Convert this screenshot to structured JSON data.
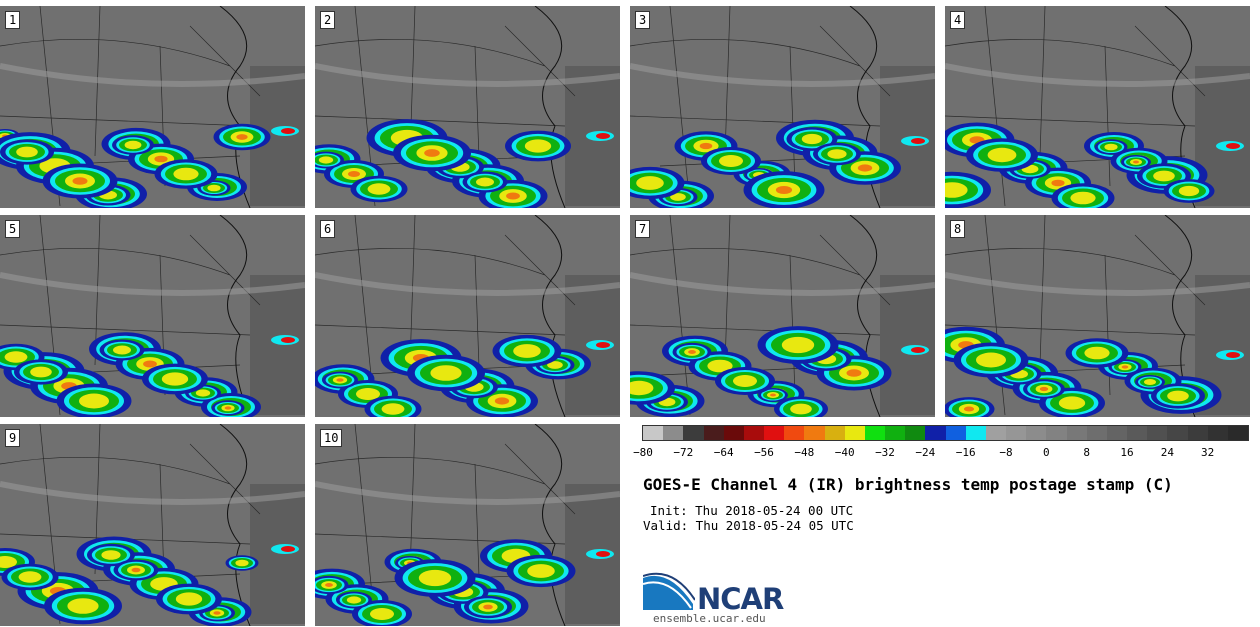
{
  "panels": [
    {
      "label": "1"
    },
    {
      "label": "2"
    },
    {
      "label": "3"
    },
    {
      "label": "4"
    },
    {
      "label": "5"
    },
    {
      "label": "6"
    },
    {
      "label": "7"
    },
    {
      "label": "8"
    },
    {
      "label": "9"
    },
    {
      "label": "10"
    }
  ],
  "colorbar": {
    "ticks": [
      "−80",
      "−72",
      "−64",
      "−56",
      "−48",
      "−40",
      "−32",
      "−24",
      "−16",
      "−8",
      "0",
      "8",
      "16",
      "24",
      "32"
    ],
    "colors": [
      "#c8c8c8",
      "#8c8c8c",
      "#3c3c3c",
      "#4a1c1c",
      "#6a0a0a",
      "#a80c0c",
      "#e01010",
      "#f04a10",
      "#f07a10",
      "#d8b010",
      "#e8e810",
      "#10e010",
      "#10b010",
      "#108a10",
      "#1020a8",
      "#1060e0",
      "#10e8f0",
      "#a0a0a0",
      "#969696",
      "#8c8c8c",
      "#828282",
      "#787878",
      "#6e6e6e",
      "#646464",
      "#5a5a5a",
      "#505050",
      "#464646",
      "#3c3c3c",
      "#323232",
      "#2a2a2a"
    ]
  },
  "title": "GOES-E Channel 4 (IR) brightness temp postage stamp (C)",
  "init_line": "Init: Thu 2018-05-24 00 UTC",
  "valid_line": "Valid: Thu 2018-05-24 05 UTC",
  "logo": {
    "text": "NCAR",
    "url": "ensemble.ucar.edu"
  }
}
